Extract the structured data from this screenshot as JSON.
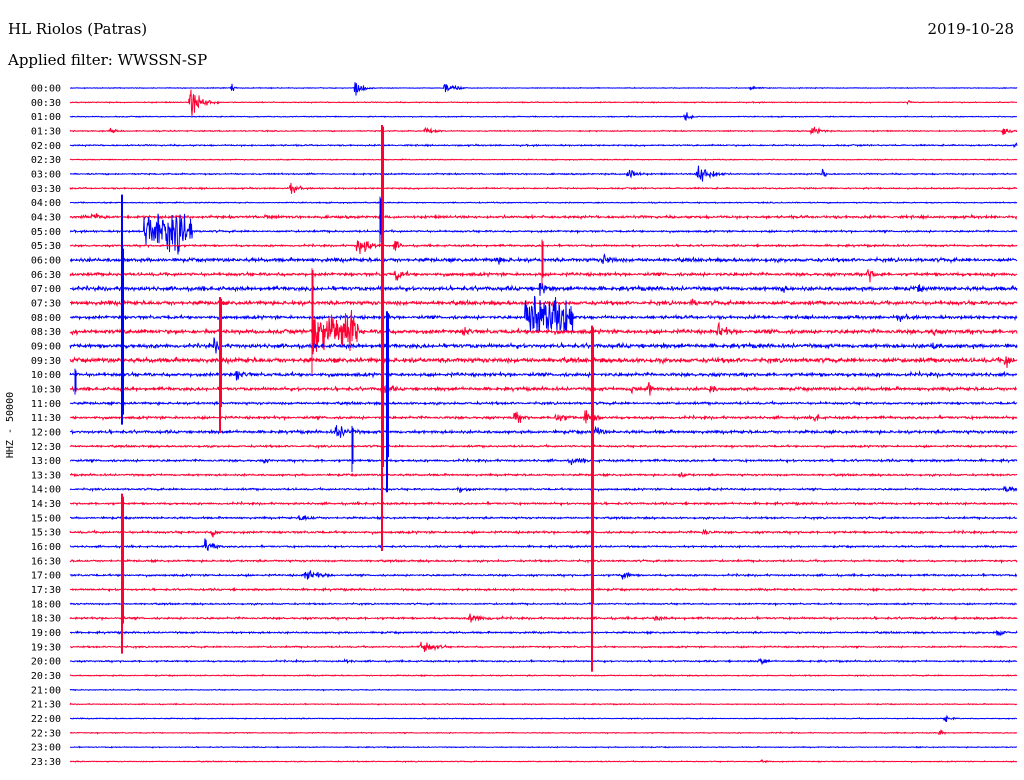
{
  "header": {
    "station": "HL Riolos (Patras)",
    "date": "2019-10-28",
    "filter": "Applied filter: WWSSN-SP"
  },
  "chart_data": {
    "type": "line",
    "title": "HL Riolos (Patras)",
    "ylabel": "HHZ - 50000",
    "series_colors": [
      "#0000ff",
      "#ff0033"
    ],
    "row_labels": [
      "00:00",
      "00:30",
      "01:00",
      "01:30",
      "02:00",
      "02:30",
      "03:00",
      "03:30",
      "04:00",
      "04:30",
      "05:00",
      "05:30",
      "06:00",
      "06:30",
      "07:00",
      "07:30",
      "08:00",
      "08:30",
      "09:00",
      "09:30",
      "10:00",
      "10:30",
      "11:00",
      "11:30",
      "12:00",
      "12:30",
      "13:00",
      "13:30",
      "14:00",
      "14:30",
      "15:00",
      "15:30",
      "16:00",
      "16:30",
      "17:00",
      "17:30",
      "18:00",
      "18:30",
      "19:00",
      "19:30",
      "20:00",
      "20:30",
      "21:00",
      "21:30",
      "22:00",
      "22:30",
      "23:00",
      "23:30"
    ],
    "row_noise": [
      0.5,
      0.6,
      0.6,
      0.7,
      0.9,
      0.6,
      0.9,
      0.9,
      0.7,
      1.6,
      1.2,
      1.2,
      2.2,
      2.0,
      2.5,
      2.4,
      2.0,
      2.6,
      2.5,
      2.8,
      2.2,
      2.0,
      1.5,
      1.6,
      1.8,
      1.2,
      1.4,
      1.2,
      1.2,
      1.3,
      1.2,
      1.4,
      1.1,
      1.2,
      1.2,
      1.2,
      1.0,
      1.3,
      1.1,
      1.0,
      1.0,
      0.7,
      0.6,
      0.6,
      0.6,
      0.6,
      0.6,
      0.6
    ],
    "events": [
      {
        "row": 0,
        "x": 232,
        "amp": 8,
        "dur": 6
      },
      {
        "row": 0,
        "x": 355,
        "amp": 14,
        "dur": 18
      },
      {
        "row": 0,
        "x": 445,
        "amp": 10,
        "dur": 22
      },
      {
        "row": 0,
        "x": 750,
        "amp": 3,
        "dur": 20
      },
      {
        "row": 1,
        "x": 190,
        "amp": 22,
        "dur": 30
      },
      {
        "row": 1,
        "x": 908,
        "amp": 6,
        "dur": 4
      },
      {
        "row": 2,
        "x": 685,
        "amp": 10,
        "dur": 12
      },
      {
        "row": 3,
        "x": 110,
        "amp": 6,
        "dur": 14
      },
      {
        "row": 3,
        "x": 425,
        "amp": 6,
        "dur": 20
      },
      {
        "row": 3,
        "x": 812,
        "amp": 9,
        "dur": 16
      },
      {
        "row": 3,
        "x": 1003,
        "amp": 9,
        "dur": 14
      },
      {
        "row": 4,
        "x": 1015,
        "amp": 5,
        "dur": 8
      },
      {
        "row": 6,
        "x": 628,
        "amp": 16,
        "dur": 16
      },
      {
        "row": 6,
        "x": 697,
        "amp": 20,
        "dur": 28
      },
      {
        "row": 6,
        "x": 822,
        "amp": 8,
        "dur": 10
      },
      {
        "row": 7,
        "x": 290,
        "amp": 11,
        "dur": 14
      },
      {
        "row": 9,
        "x": 92,
        "amp": 6,
        "dur": 24
      },
      {
        "row": 9,
        "x": 265,
        "amp": 4,
        "dur": 10
      },
      {
        "row": 10,
        "x": 144,
        "amp": 28,
        "dur": 48,
        "block": true
      },
      {
        "row": 11,
        "x": 357,
        "amp": 18,
        "dur": 26
      },
      {
        "row": 11,
        "x": 395,
        "amp": 9,
        "dur": 10
      },
      {
        "row": 12,
        "x": 495,
        "amp": 5,
        "dur": 20
      },
      {
        "row": 12,
        "x": 604,
        "amp": 11,
        "dur": 14
      },
      {
        "row": 13,
        "x": 396,
        "amp": 10,
        "dur": 12
      },
      {
        "row": 13,
        "x": 868,
        "amp": 10,
        "dur": 14
      },
      {
        "row": 14,
        "x": 540,
        "amp": 16,
        "dur": 12
      },
      {
        "row": 14,
        "x": 780,
        "amp": 8,
        "dur": 10
      },
      {
        "row": 14,
        "x": 918,
        "amp": 6,
        "dur": 8
      },
      {
        "row": 15,
        "x": 692,
        "amp": 6,
        "dur": 8
      },
      {
        "row": 16,
        "x": 525,
        "amp": 28,
        "dur": 48,
        "block": true
      },
      {
        "row": 16,
        "x": 898,
        "amp": 5,
        "dur": 14
      },
      {
        "row": 17,
        "x": 312,
        "amp": 28,
        "dur": 46,
        "block": true
      },
      {
        "row": 17,
        "x": 718,
        "amp": 14,
        "dur": 16
      },
      {
        "row": 17,
        "x": 465,
        "amp": 9,
        "dur": 10
      },
      {
        "row": 17,
        "x": 932,
        "amp": 8,
        "dur": 8
      },
      {
        "row": 18,
        "x": 214,
        "amp": 12,
        "dur": 10
      },
      {
        "row": 18,
        "x": 933,
        "amp": 9,
        "dur": 8
      },
      {
        "row": 19,
        "x": 1005,
        "amp": 14,
        "dur": 10
      },
      {
        "row": 20,
        "x": 237,
        "amp": 8,
        "dur": 16
      },
      {
        "row": 21,
        "x": 382,
        "amp": 14,
        "dur": 14
      },
      {
        "row": 21,
        "x": 630,
        "amp": 9,
        "dur": 10
      },
      {
        "row": 21,
        "x": 648,
        "amp": 12,
        "dur": 10
      },
      {
        "row": 21,
        "x": 710,
        "amp": 7,
        "dur": 12
      },
      {
        "row": 23,
        "x": 515,
        "amp": 12,
        "dur": 14
      },
      {
        "row": 23,
        "x": 555,
        "amp": 10,
        "dur": 20
      },
      {
        "row": 23,
        "x": 585,
        "amp": 14,
        "dur": 18
      },
      {
        "row": 23,
        "x": 815,
        "amp": 7,
        "dur": 10
      },
      {
        "row": 24,
        "x": 335,
        "amp": 12,
        "dur": 24
      },
      {
        "row": 24,
        "x": 595,
        "amp": 10,
        "dur": 12
      },
      {
        "row": 26,
        "x": 265,
        "amp": 4,
        "dur": 6
      },
      {
        "row": 26,
        "x": 570,
        "amp": 4,
        "dur": 30
      },
      {
        "row": 27,
        "x": 680,
        "amp": 4,
        "dur": 14
      },
      {
        "row": 28,
        "x": 458,
        "amp": 5,
        "dur": 20
      },
      {
        "row": 28,
        "x": 1005,
        "amp": 6,
        "dur": 14
      },
      {
        "row": 28,
        "x": 708,
        "amp": 4,
        "dur": 14
      },
      {
        "row": 30,
        "x": 300,
        "amp": 6,
        "dur": 20
      },
      {
        "row": 31,
        "x": 212,
        "amp": 8,
        "dur": 10
      },
      {
        "row": 31,
        "x": 703,
        "amp": 6,
        "dur": 12
      },
      {
        "row": 32,
        "x": 205,
        "amp": 12,
        "dur": 18
      },
      {
        "row": 34,
        "x": 305,
        "amp": 10,
        "dur": 30
      },
      {
        "row": 34,
        "x": 622,
        "amp": 8,
        "dur": 16
      },
      {
        "row": 36,
        "x": 60,
        "amp": 3,
        "dur": 14
      },
      {
        "row": 37,
        "x": 470,
        "amp": 6,
        "dur": 34
      },
      {
        "row": 37,
        "x": 655,
        "amp": 5,
        "dur": 12
      },
      {
        "row": 38,
        "x": 997,
        "amp": 9,
        "dur": 12
      },
      {
        "row": 39,
        "x": 420,
        "amp": 14,
        "dur": 26
      },
      {
        "row": 40,
        "x": 345,
        "amp": 4,
        "dur": 10
      },
      {
        "row": 40,
        "x": 760,
        "amp": 7,
        "dur": 12
      },
      {
        "row": 44,
        "x": 945,
        "amp": 6,
        "dur": 12
      },
      {
        "row": 45,
        "x": 940,
        "amp": 8,
        "dur": 6
      },
      {
        "row": 47,
        "x": 762,
        "amp": 4,
        "dur": 10
      }
    ],
    "spikes": [
      {
        "row": 3,
        "x": 382,
        "down": 420
      },
      {
        "row": 20,
        "x": 122,
        "up": 180,
        "down": 50
      },
      {
        "row": 29,
        "x": 122,
        "up": 10,
        "down": 150
      },
      {
        "row": 8,
        "x": 380,
        "down": 40
      },
      {
        "row": 15,
        "x": 220,
        "down": 130
      },
      {
        "row": 13,
        "x": 312,
        "down": 100
      },
      {
        "row": 16,
        "x": 387,
        "down": 175
      },
      {
        "row": 11,
        "x": 542,
        "down": 40
      },
      {
        "row": 17,
        "x": 592,
        "down": 340
      },
      {
        "row": 24,
        "x": 352,
        "down": 40
      },
      {
        "row": 20,
        "x": 75,
        "down": 20
      }
    ]
  }
}
